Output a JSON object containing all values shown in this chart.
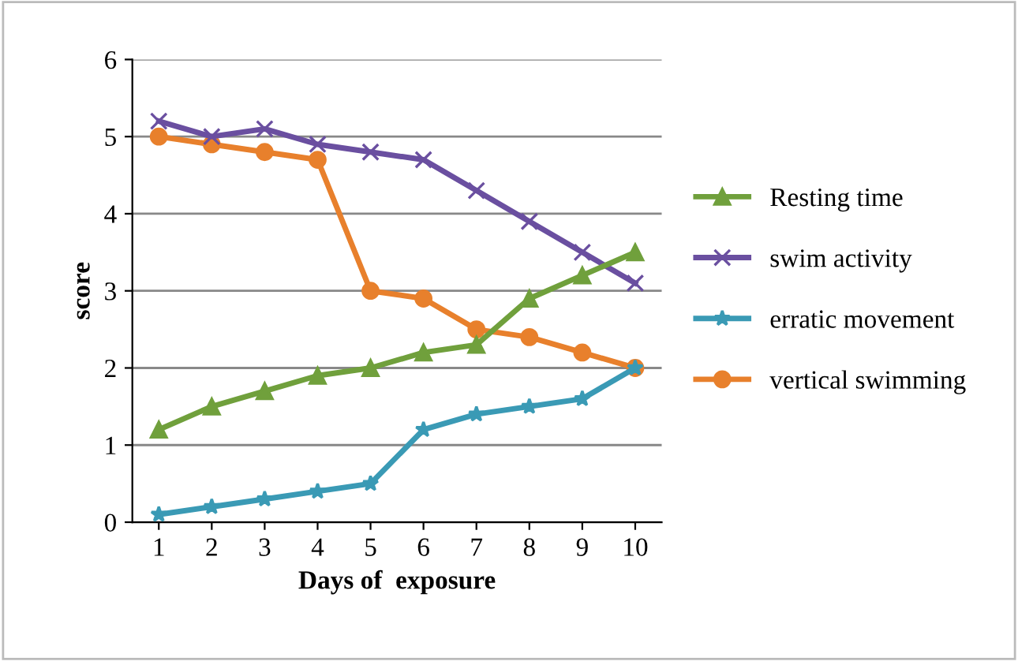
{
  "chart_data": {
    "type": "line",
    "xlabel": "Days of  exposure",
    "ylabel": "score",
    "categories": [
      "1",
      "2",
      "3",
      "4",
      "5",
      "6",
      "7",
      "8",
      "9",
      "10"
    ],
    "series": [
      {
        "name": "Resting time",
        "color": "#70a03c",
        "marker": "triangle",
        "values": [
          1.2,
          1.5,
          1.7,
          1.9,
          2.0,
          2.2,
          2.3,
          2.9,
          3.2,
          3.5
        ]
      },
      {
        "name": "swim activity",
        "color": "#6a4fa0",
        "marker": "cross",
        "values": [
          5.2,
          5.0,
          5.1,
          4.9,
          4.8,
          4.7,
          4.3,
          3.9,
          3.5,
          3.1
        ]
      },
      {
        "name": "erratic movement",
        "color": "#3a9ab5",
        "marker": "star",
        "values": [
          0.1,
          0.2,
          0.3,
          0.4,
          0.5,
          1.2,
          1.4,
          1.5,
          1.6,
          2.0
        ]
      },
      {
        "name": "vertical swimming",
        "color": "#e8802c",
        "marker": "circle",
        "values": [
          5.0,
          4.9,
          4.8,
          4.7,
          3.0,
          2.9,
          2.5,
          2.4,
          2.2,
          2.0
        ]
      }
    ],
    "ylim": [
      0,
      6
    ],
    "yticks": [
      0,
      1,
      2,
      3,
      4,
      5,
      6
    ],
    "grid": "y",
    "legend": "right",
    "line_style": "solid"
  }
}
